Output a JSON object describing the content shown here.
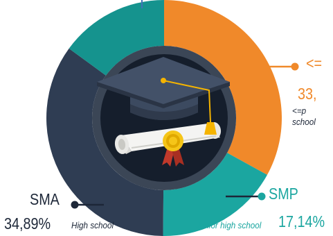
{
  "chart_data": {
    "type": "pie",
    "variant": "donut",
    "slices": [
      {
        "category": "<=",
        "value_text": "33,",
        "value": 33,
        "description": "<=p school",
        "color": "#f0892a"
      },
      {
        "category": "SMP",
        "value_text": "17,14%",
        "value": 17.14,
        "description": "Junior high school",
        "color": "#1ba6a0"
      },
      {
        "category": "SMA",
        "value_text": "34,89%",
        "value": 34.89,
        "description": "High school",
        "color": "#2f3d53"
      },
      {
        "category": "",
        "value_text": "",
        "value": 14.97,
        "description": "",
        "color": "#15938e"
      }
    ]
  },
  "colors": {
    "orange": "#f0892a",
    "teal": "#1ba6a0",
    "dark_teal": "#15938e",
    "navy": "#2f3d53",
    "inner_ring": "#3b4656",
    "center": "#151e2c",
    "text_dark": "#1d2738",
    "leader_blue": "#3f73b7"
  },
  "icon": "graduation-cap-and-diploma-icon"
}
